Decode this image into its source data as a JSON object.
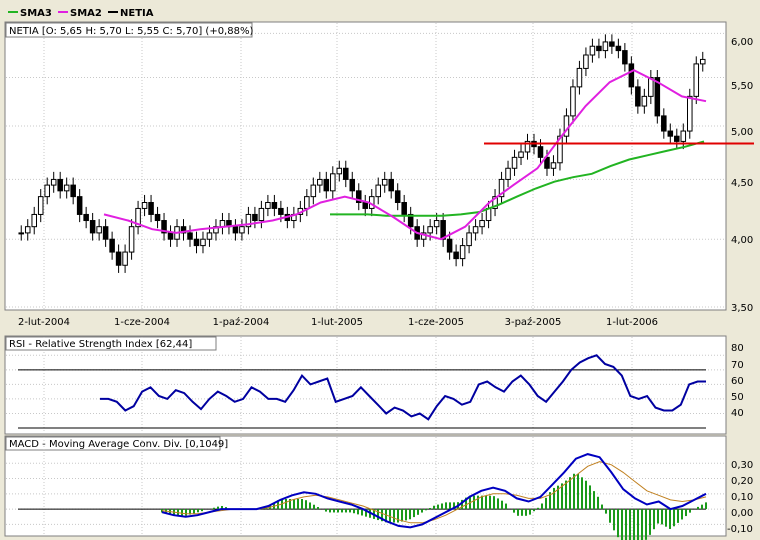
{
  "legend": [
    {
      "label": "SMA3",
      "color": "#22b422"
    },
    {
      "label": "SMA2",
      "color": "#e020e0"
    },
    {
      "label": "NETIA",
      "color": "#000000"
    }
  ],
  "price_panel": {
    "title": "NETIA [O: 5,65  H: 5,70  L: 5,55  C: 5,70] (+0,88%)",
    "y_ticks": [
      "6,00",
      "5,50",
      "5,00",
      "4,50",
      "4,00",
      "3,50"
    ],
    "x_ticks": [
      "2-lut-2004",
      "1-cze-2004",
      "1-paź-2004",
      "1-lut-2005",
      "1-cze-2005",
      "3-paź-2005",
      "1-lut-2006"
    ],
    "support_line_color": "#e00000"
  },
  "rsi_panel": {
    "title": "RSI - Relative Strength Index [62,44]",
    "y_ticks": [
      "80",
      "70",
      "60",
      "50",
      "40"
    ]
  },
  "macd_panel": {
    "title": "MACD - Moving Average Conv. Div. [0,1049]",
    "y_ticks": [
      "0,30",
      "0,20",
      "0,10",
      "0,00",
      "-0,10"
    ]
  },
  "chart_data": [
    {
      "type": "candlestick",
      "title": "NETIA [O: 5,65  H: 5,70  L: 5,55  C: 5,70] (+0,88%)",
      "x_ticks": [
        "2-lut-2004",
        "1-cze-2004",
        "1-paź-2004",
        "1-lut-2005",
        "1-cze-2005",
        "3-paź-2005",
        "1-lut-2006"
      ],
      "y_scale": "log",
      "ylim": [
        3.5,
        6.1
      ],
      "last_candle": {
        "open": 5.65,
        "high": 5.7,
        "low": 5.55,
        "close": 5.7
      },
      "horizontal_line": 4.83,
      "closes": [
        4.05,
        4.1,
        4.2,
        4.35,
        4.45,
        4.5,
        4.4,
        4.45,
        4.35,
        4.2,
        4.15,
        4.05,
        4.1,
        4.0,
        3.9,
        3.8,
        3.9,
        4.1,
        4.25,
        4.3,
        4.2,
        4.15,
        4.05,
        4.0,
        4.1,
        4.05,
        4.0,
        3.95,
        4.0,
        4.05,
        4.1,
        4.15,
        4.1,
        4.05,
        4.1,
        4.2,
        4.15,
        4.25,
        4.3,
        4.25,
        4.2,
        4.15,
        4.2,
        4.25,
        4.35,
        4.45,
        4.5,
        4.4,
        4.55,
        4.6,
        4.5,
        4.4,
        4.3,
        4.25,
        4.35,
        4.45,
        4.5,
        4.4,
        4.3,
        4.2,
        4.1,
        4.0,
        4.05,
        4.1,
        4.15,
        4.0,
        3.9,
        3.85,
        3.95,
        4.05,
        4.1,
        4.15,
        4.25,
        4.35,
        4.5,
        4.6,
        4.7,
        4.75,
        4.85,
        4.8,
        4.7,
        4.6,
        4.65,
        4.9,
        5.1,
        5.4,
        5.6,
        5.75,
        5.85,
        5.8,
        5.9,
        5.85,
        5.8,
        5.65,
        5.4,
        5.2,
        5.3,
        5.5,
        5.1,
        4.95,
        4.9,
        4.85,
        4.95,
        5.3,
        5.65,
        5.7
      ],
      "series": [
        {
          "name": "SMA3",
          "color": "#22b422",
          "values": [
            4.2,
            4.2,
            4.2,
            4.19,
            4.19,
            4.19,
            4.19,
            4.2,
            4.22,
            4.28,
            4.35,
            4.42,
            4.48,
            4.52,
            4.55,
            4.62,
            4.68,
            4.72,
            4.76,
            4.8,
            4.85
          ]
        },
        {
          "name": "SMA2",
          "color": "#e020e0",
          "values": [
            4.2,
            4.15,
            4.08,
            4.05,
            4.08,
            4.1,
            4.12,
            4.15,
            4.2,
            4.3,
            4.35,
            4.3,
            4.18,
            4.05,
            4.0,
            4.1,
            4.3,
            4.45,
            4.6,
            4.9,
            5.2,
            5.45,
            5.58,
            5.45,
            5.3,
            5.25
          ]
        }
      ]
    },
    {
      "type": "line",
      "title": "RSI - Relative Strength Index [62,44]",
      "ylim": [
        30,
        85
      ],
      "reference_lines": [
        70,
        30
      ],
      "series": [
        {
          "name": "RSI",
          "color": "#0000a0",
          "values": [
            50,
            50,
            48,
            42,
            45,
            55,
            58,
            52,
            50,
            56,
            54,
            48,
            43,
            50,
            55,
            52,
            48,
            50,
            58,
            55,
            50,
            50,
            48,
            56,
            66,
            60,
            62,
            64,
            48,
            50,
            52,
            58,
            52,
            46,
            40,
            44,
            42,
            38,
            40,
            36,
            45,
            52,
            50,
            46,
            48,
            60,
            62,
            58,
            55,
            62,
            66,
            60,
            52,
            48,
            55,
            62,
            70,
            75,
            78,
            80,
            74,
            72,
            66,
            52,
            50,
            52,
            44,
            42,
            42,
            46,
            60,
            62,
            62
          ]
        }
      ]
    },
    {
      "type": "line",
      "title": "MACD - Moving Average Conv. Div. [0,1049]",
      "ylim": [
        -0.15,
        0.4
      ],
      "series": [
        {
          "name": "MACD",
          "color": "#0000c0",
          "values": [
            -0.02,
            -0.04,
            -0.05,
            -0.04,
            -0.02,
            0.0,
            0.0,
            0.0,
            0.0,
            0.02,
            0.06,
            0.09,
            0.11,
            0.1,
            0.07,
            0.05,
            0.03,
            0.0,
            -0.04,
            -0.08,
            -0.11,
            -0.12,
            -0.1,
            -0.06,
            -0.02,
            0.02,
            0.08,
            0.12,
            0.14,
            0.12,
            0.07,
            0.05,
            0.08,
            0.16,
            0.24,
            0.33,
            0.36,
            0.34,
            0.24,
            0.13,
            0.07,
            0.03,
            0.05,
            0.0,
            0.02,
            0.06,
            0.1
          ]
        },
        {
          "name": "Signal",
          "color": "#c08020",
          "values": [
            -0.01,
            -0.02,
            -0.03,
            -0.03,
            -0.02,
            -0.01,
            0.0,
            0.0,
            0.0,
            0.01,
            0.03,
            0.06,
            0.08,
            0.09,
            0.08,
            0.06,
            0.04,
            0.02,
            -0.01,
            -0.04,
            -0.07,
            -0.09,
            -0.09,
            -0.07,
            -0.04,
            0.0,
            0.04,
            0.08,
            0.1,
            0.1,
            0.09,
            0.07,
            0.07,
            0.1,
            0.16,
            0.22,
            0.28,
            0.31,
            0.29,
            0.24,
            0.18,
            0.12,
            0.09,
            0.06,
            0.05,
            0.06,
            0.08
          ]
        }
      ]
    }
  ]
}
